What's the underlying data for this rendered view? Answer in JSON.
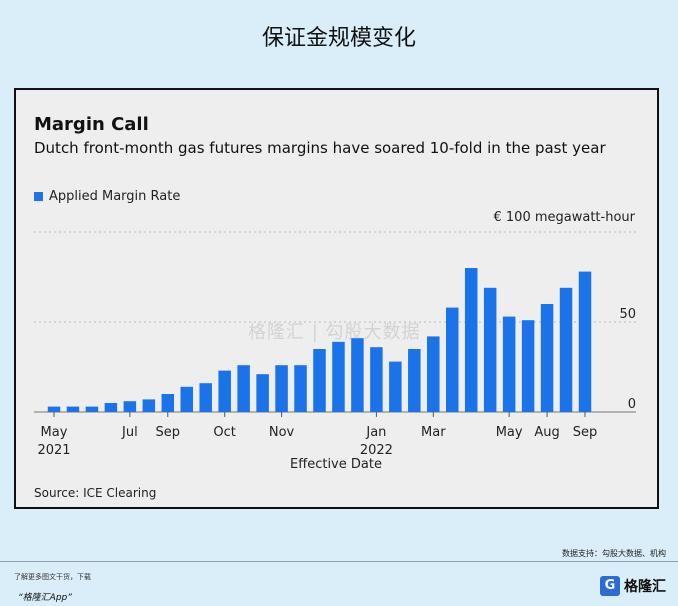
{
  "page": {
    "title": "保证金规模变化",
    "watermark": "格隆汇 | 勾股大数据",
    "data_support": "数据支持：勾股大数据、机构",
    "footer_note": "了解更多图文干货，下载",
    "footer_app": "“格隆汇App”",
    "logo_mark": "G",
    "logo_text": "格隆汇"
  },
  "chart_data": {
    "type": "bar",
    "title": "Margin Call",
    "subtitle": "Dutch front-month gas futures margins have soared 10-fold in the past year",
    "legend": [
      "Applied Margin Rate"
    ],
    "unit": "€ 100 megawatt-hour",
    "xlabel": "Effective Date",
    "source": "Source: ICE Clearing",
    "color": "#1a73e8",
    "ylim": [
      0,
      100
    ],
    "yticks": [
      0,
      50
    ],
    "gridlines": [
      0,
      50,
      100
    ],
    "values": [
      3,
      3,
      3,
      5,
      6,
      7,
      10,
      14,
      16,
      23,
      26,
      21,
      26,
      26,
      35,
      39,
      41,
      36,
      28,
      35,
      42,
      58,
      80,
      69,
      53,
      51,
      60,
      69,
      78
    ],
    "xtick_labels": [
      {
        "index": 0,
        "label": "May",
        "sub": "2021"
      },
      {
        "index": 4,
        "label": "Jul",
        "sub": ""
      },
      {
        "index": 6,
        "label": "Sep",
        "sub": ""
      },
      {
        "index": 9,
        "label": "Oct",
        "sub": ""
      },
      {
        "index": 12,
        "label": "Nov",
        "sub": ""
      },
      {
        "index": 17,
        "label": "Jan",
        "sub": "2022"
      },
      {
        "index": 20,
        "label": "Mar",
        "sub": ""
      },
      {
        "index": 24,
        "label": "May",
        "sub": ""
      },
      {
        "index": 26,
        "label": "Aug",
        "sub": ""
      },
      {
        "index": 28,
        "label": "Sep",
        "sub": ""
      }
    ]
  }
}
